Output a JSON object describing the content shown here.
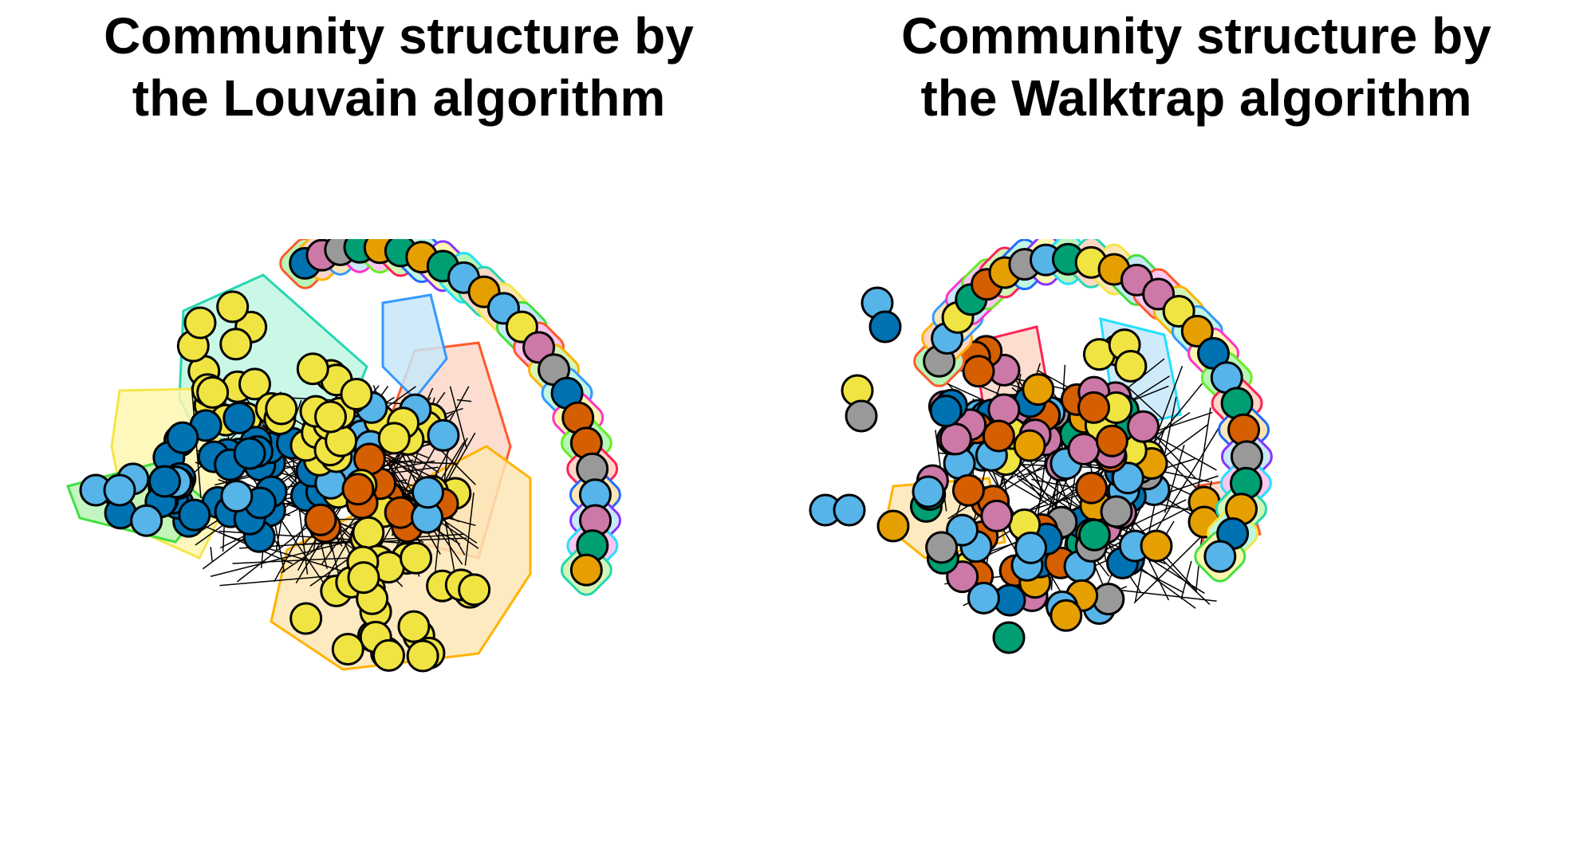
{
  "panels": [
    {
      "id": "louvain",
      "title_line1": "Community structure by",
      "title_line2": "the Louvain algorithm"
    },
    {
      "id": "walktrap",
      "title_line1": "Community structure by",
      "title_line2": "the Walktrap algorithm"
    }
  ],
  "colors": {
    "node_palette": [
      "#56B4E9",
      "#0072B2",
      "#F0E442",
      "#D55E00",
      "#009E73",
      "#E69F00",
      "#CC79A7",
      "#999999"
    ],
    "hull_fills": [
      "#bff7e3",
      "#fff7b0",
      "#b8f5b8",
      "#fcd7c8",
      "#fde6b6",
      "#c7e8f9",
      "#fbc6ef",
      "#d4f5b8"
    ],
    "hull_strokes": [
      "#26d6b0",
      "#f5e64a",
      "#40e040",
      "#ff5a2a",
      "#ffb300",
      "#3399ff",
      "#ff33cc",
      "#66ee22",
      "#ff2255",
      "#1f6aff",
      "#8833ff",
      "#22e0ff"
    ]
  }
}
